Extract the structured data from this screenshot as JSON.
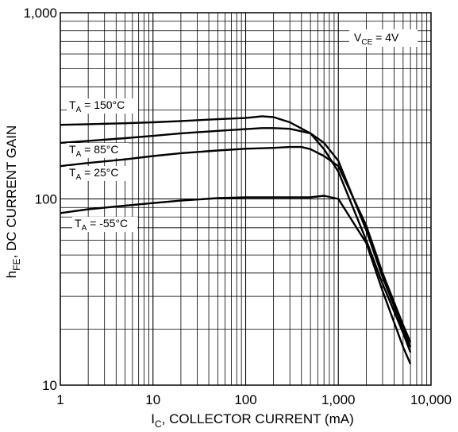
{
  "chart_data": {
    "type": "line",
    "x_scale": "log",
    "y_scale": "log",
    "xlim": [
      1,
      10000
    ],
    "ylim": [
      10,
      1000
    ],
    "grid": true,
    "x_ticks": [
      "1",
      "10",
      "100",
      "1,000",
      "10,000"
    ],
    "y_ticks": [
      "10",
      "100",
      "1,000"
    ],
    "xlabel": {
      "main": "I",
      "sub": "C",
      "rest": ", COLLECTOR CURRENT (mA)"
    },
    "ylabel": {
      "main": "h",
      "sub": "FE",
      "rest": ", DC CURRENT GAIN"
    },
    "condition": {
      "main": "V",
      "sub": "CE",
      "rest": " = 4V"
    },
    "series": [
      {
        "name": "T_A = 150°C",
        "label": {
          "main": "T",
          "sub": "A",
          "rest": " = 150°C"
        },
        "x": [
          1,
          2,
          5,
          10,
          20,
          50,
          100,
          150,
          200,
          300,
          500,
          700,
          1000,
          2000,
          3000,
          5000,
          6000
        ],
        "y": [
          250,
          252,
          255,
          258,
          262,
          268,
          272,
          278,
          275,
          258,
          225,
          185,
          140,
          60,
          35,
          19,
          15
        ]
      },
      {
        "name": "T_A = 85°C",
        "label": {
          "main": "T",
          "sub": "A",
          "rest": " = 85°C"
        },
        "x": [
          1,
          2,
          5,
          10,
          20,
          50,
          100,
          150,
          200,
          300,
          500,
          700,
          1000,
          2000,
          3000,
          5000,
          6000
        ],
        "y": [
          200,
          205,
          212,
          218,
          225,
          232,
          237,
          240,
          240,
          238,
          225,
          200,
          160,
          68,
          38,
          20,
          16
        ]
      },
      {
        "name": "T_A = 25°C",
        "label": {
          "main": "T",
          "sub": "A",
          "rest": " = 25°C"
        },
        "x": [
          1,
          2,
          5,
          10,
          20,
          50,
          100,
          200,
          300,
          400,
          500,
          700,
          1000,
          2000,
          3000,
          5000,
          6000
        ],
        "y": [
          150,
          156,
          163,
          170,
          176,
          182,
          186,
          188,
          190,
          190,
          185,
          170,
          150,
          72,
          40,
          21,
          17
        ]
      },
      {
        "name": "T_A = -55°C",
        "label": {
          "main": "T",
          "sub": "A",
          "rest": " = -55°C"
        },
        "x": [
          1,
          2,
          5,
          10,
          20,
          50,
          100,
          200,
          500,
          700,
          1000,
          2000,
          3000,
          5000,
          6000
        ],
        "y": [
          84,
          88,
          92,
          95,
          98,
          101,
          102,
          102,
          102,
          104,
          100,
          58,
          32,
          16,
          13
        ]
      }
    ]
  }
}
